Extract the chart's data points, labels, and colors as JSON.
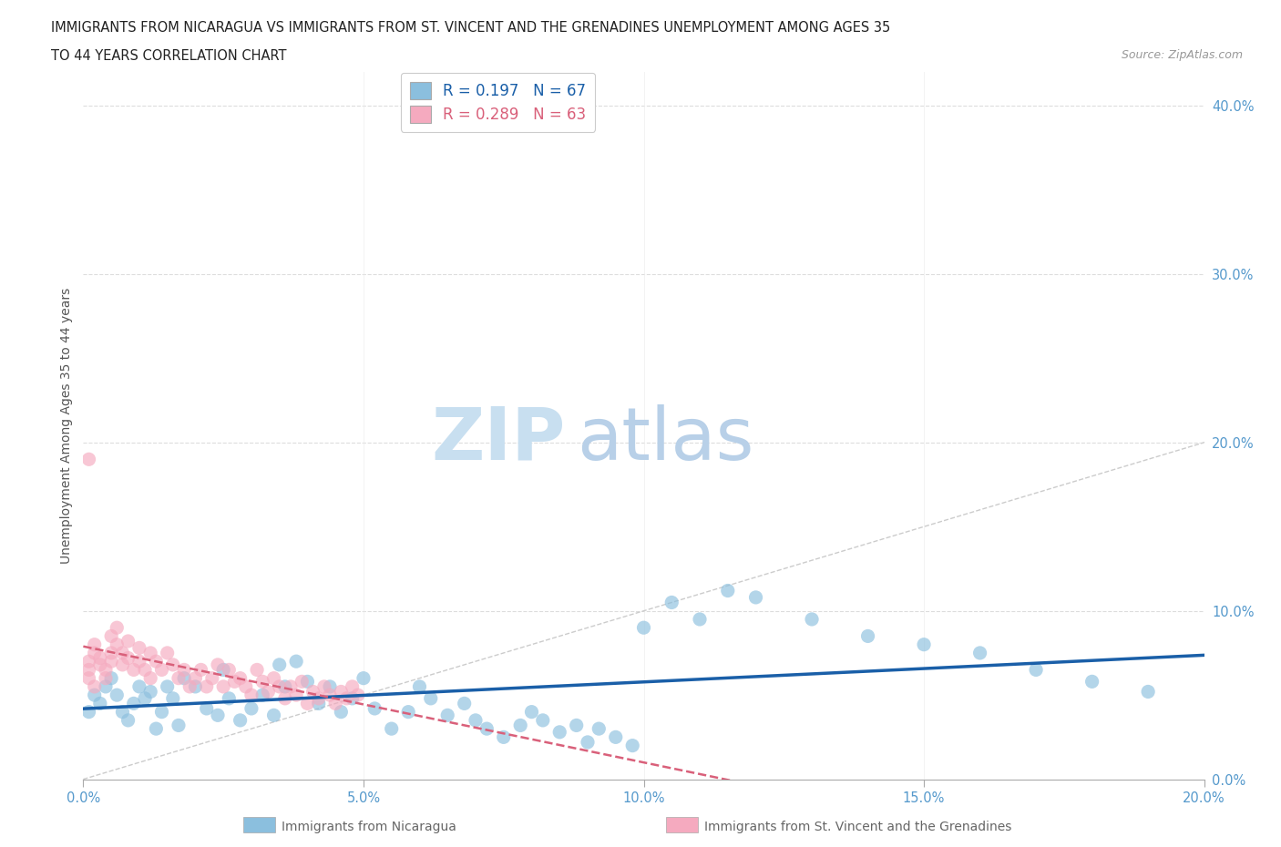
{
  "title_line1": "IMMIGRANTS FROM NICARAGUA VS IMMIGRANTS FROM ST. VINCENT AND THE GRENADINES UNEMPLOYMENT AMONG AGES 35",
  "title_line2": "TO 44 YEARS CORRELATION CHART",
  "source_text": "Source: ZipAtlas.com",
  "ylabel": "Unemployment Among Ages 35 to 44 years",
  "r_nicaragua": 0.197,
  "n_nicaragua": 67,
  "r_stvinc": 0.289,
  "n_stvinc": 63,
  "xlim": [
    0.0,
    0.2
  ],
  "ylim": [
    0.0,
    0.42
  ],
  "xticks": [
    0.0,
    0.05,
    0.1,
    0.15,
    0.2
  ],
  "yticks": [
    0.0,
    0.1,
    0.2,
    0.3,
    0.4
  ],
  "color_nicaragua": "#8bbfde",
  "color_stvinc": "#f5aabf",
  "trend_color_nicaragua": "#1a5fa8",
  "trend_color_stvinc": "#d9607a",
  "diagonal_color": "#cccccc",
  "watermark_zip_color": "#c8dff0",
  "watermark_atlas_color": "#b8d0e8",
  "legend_label_nicaragua": "Immigrants from Nicaragua",
  "legend_label_stvinc": "Immigrants from St. Vincent and the Grenadines",
  "tick_color": "#5599cc",
  "grid_color": "#dddddd",
  "nicaragua_x": [
    0.001,
    0.002,
    0.003,
    0.004,
    0.005,
    0.006,
    0.007,
    0.008,
    0.009,
    0.01,
    0.011,
    0.012,
    0.013,
    0.014,
    0.015,
    0.016,
    0.017,
    0.018,
    0.02,
    0.022,
    0.024,
    0.025,
    0.026,
    0.028,
    0.03,
    0.032,
    0.034,
    0.035,
    0.036,
    0.038,
    0.04,
    0.042,
    0.044,
    0.046,
    0.048,
    0.05,
    0.052,
    0.055,
    0.058,
    0.06,
    0.062,
    0.065,
    0.068,
    0.07,
    0.072,
    0.075,
    0.078,
    0.08,
    0.082,
    0.085,
    0.088,
    0.09,
    0.092,
    0.095,
    0.098,
    0.1,
    0.105,
    0.11,
    0.115,
    0.12,
    0.13,
    0.14,
    0.15,
    0.16,
    0.17,
    0.18,
    0.19
  ],
  "nicaragua_y": [
    0.04,
    0.05,
    0.045,
    0.055,
    0.06,
    0.05,
    0.04,
    0.035,
    0.045,
    0.055,
    0.048,
    0.052,
    0.03,
    0.04,
    0.055,
    0.048,
    0.032,
    0.06,
    0.055,
    0.042,
    0.038,
    0.065,
    0.048,
    0.035,
    0.042,
    0.05,
    0.038,
    0.068,
    0.055,
    0.07,
    0.058,
    0.045,
    0.055,
    0.04,
    0.048,
    0.06,
    0.042,
    0.03,
    0.04,
    0.055,
    0.048,
    0.038,
    0.045,
    0.035,
    0.03,
    0.025,
    0.032,
    0.04,
    0.035,
    0.028,
    0.032,
    0.022,
    0.03,
    0.025,
    0.02,
    0.09,
    0.105,
    0.095,
    0.112,
    0.108,
    0.095,
    0.085,
    0.08,
    0.075,
    0.065,
    0.058,
    0.052
  ],
  "stvinc_x": [
    0.001,
    0.001,
    0.001,
    0.002,
    0.002,
    0.002,
    0.003,
    0.003,
    0.004,
    0.004,
    0.005,
    0.005,
    0.005,
    0.006,
    0.006,
    0.007,
    0.007,
    0.008,
    0.008,
    0.009,
    0.01,
    0.01,
    0.011,
    0.012,
    0.012,
    0.013,
    0.014,
    0.015,
    0.016,
    0.017,
    0.018,
    0.019,
    0.02,
    0.021,
    0.022,
    0.023,
    0.024,
    0.025,
    0.026,
    0.027,
    0.028,
    0.029,
    0.03,
    0.031,
    0.032,
    0.033,
    0.034,
    0.035,
    0.036,
    0.037,
    0.038,
    0.039,
    0.04,
    0.041,
    0.042,
    0.043,
    0.044,
    0.045,
    0.046,
    0.047,
    0.048,
    0.049,
    0.001
  ],
  "stvinc_y": [
    0.065,
    0.07,
    0.06,
    0.075,
    0.055,
    0.08,
    0.068,
    0.072,
    0.06,
    0.065,
    0.085,
    0.075,
    0.07,
    0.09,
    0.08,
    0.075,
    0.068,
    0.082,
    0.072,
    0.065,
    0.078,
    0.07,
    0.065,
    0.075,
    0.06,
    0.07,
    0.065,
    0.075,
    0.068,
    0.06,
    0.065,
    0.055,
    0.06,
    0.065,
    0.055,
    0.06,
    0.068,
    0.055,
    0.065,
    0.058,
    0.06,
    0.055,
    0.05,
    0.065,
    0.058,
    0.052,
    0.06,
    0.055,
    0.048,
    0.055,
    0.05,
    0.058,
    0.045,
    0.052,
    0.048,
    0.055,
    0.05,
    0.045,
    0.052,
    0.048,
    0.055,
    0.05,
    0.19
  ]
}
